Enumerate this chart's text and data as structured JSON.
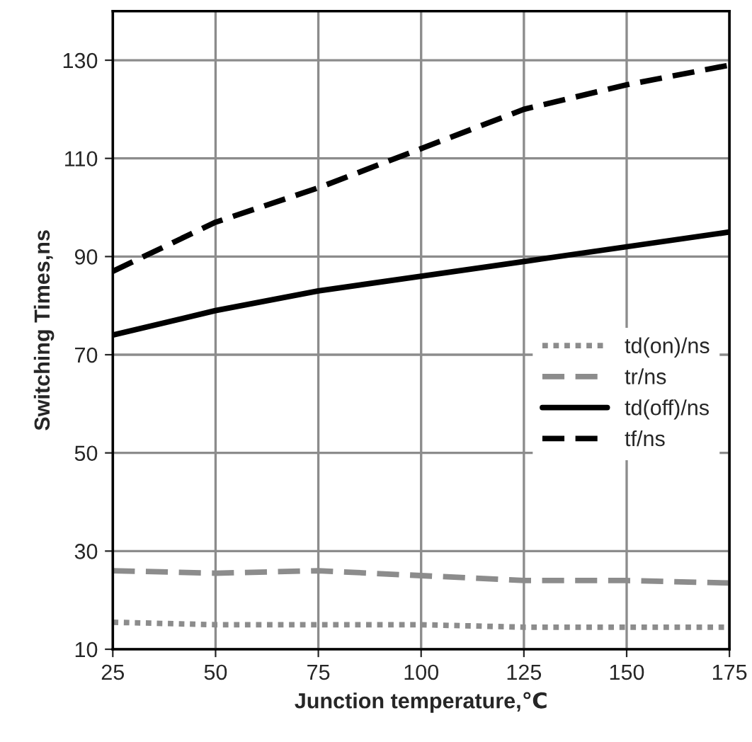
{
  "chart_data": {
    "type": "line",
    "xlabel": "Junction temperature,℃",
    "ylabel": "Switching Times,ns",
    "x": [
      25,
      50,
      75,
      100,
      125,
      150,
      175
    ],
    "series": [
      {
        "name": "td(on)/ns",
        "color": "#8c8c8c",
        "line_style": "dotted",
        "values": [
          15.5,
          15,
          15,
          15,
          14.5,
          14.5,
          14.5
        ]
      },
      {
        "name": "tr/ns",
        "color": "#8c8c8c",
        "line_style": "dashed",
        "values": [
          26,
          25.5,
          26,
          25,
          24,
          24,
          23.5
        ]
      },
      {
        "name": "td(off)/ns",
        "color": "#000000",
        "line_style": "solid",
        "values": [
          74,
          79,
          83,
          86,
          89,
          92,
          95
        ]
      },
      {
        "name": "tf/ns",
        "color": "#000000",
        "line_style": "dashed",
        "values": [
          87,
          97,
          104,
          112,
          120,
          125,
          129
        ]
      }
    ],
    "xlim": [
      25,
      175
    ],
    "xticks": [
      25,
      50,
      75,
      100,
      125,
      150,
      175
    ],
    "ylim": [
      10,
      140
    ],
    "yticks": [
      10,
      30,
      50,
      70,
      90,
      110,
      130
    ],
    "grid": true,
    "legend": "center right"
  }
}
